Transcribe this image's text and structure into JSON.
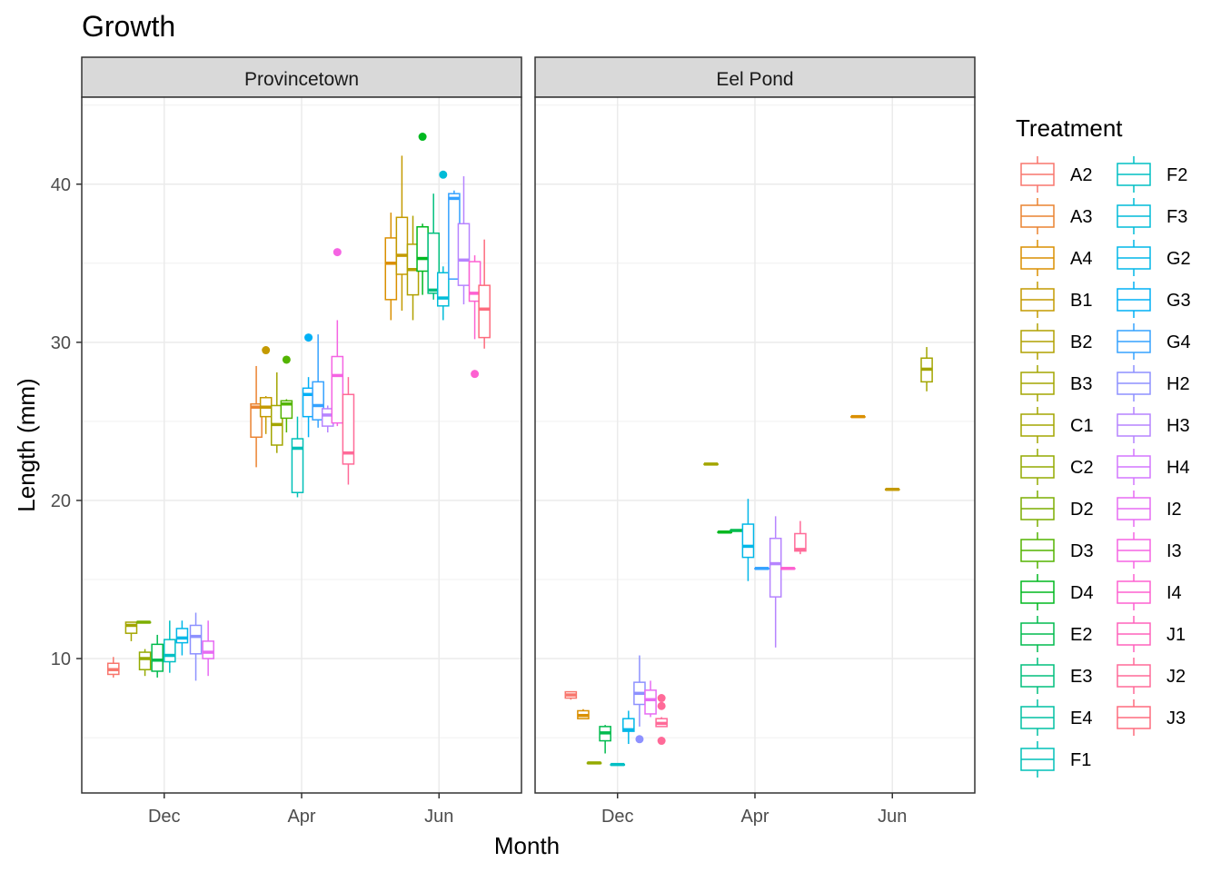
{
  "chart_data": {
    "type": "boxplot",
    "title": "Growth",
    "xlabel": "Month",
    "ylabel": "Length (mm)",
    "ylim": [
      1.5,
      45.5
    ],
    "yticks": [
      10,
      20,
      30,
      40
    ],
    "grid": true,
    "months": [
      "Dec",
      "Apr",
      "Jun"
    ],
    "legend": {
      "title": "Treatment",
      "placement": "right",
      "entries": [
        {
          "label": "A2",
          "color": "#F8766D"
        },
        {
          "label": "A3",
          "color": "#EA8331"
        },
        {
          "label": "A4",
          "color": "#DA8F00"
        },
        {
          "label": "B1",
          "color": "#C49A00"
        },
        {
          "label": "B2",
          "color": "#B1A100"
        },
        {
          "label": "B3",
          "color": "#A3A500"
        },
        {
          "label": "C1",
          "color": "#A3A500"
        },
        {
          "label": "C2",
          "color": "#94AA00"
        },
        {
          "label": "D2",
          "color": "#7CAE00"
        },
        {
          "label": "D3",
          "color": "#53B400"
        },
        {
          "label": "D4",
          "color": "#00B81F"
        },
        {
          "label": "E2",
          "color": "#00BB4E"
        },
        {
          "label": "E3",
          "color": "#00BF7D"
        },
        {
          "label": "E4",
          "color": "#00C0A3"
        },
        {
          "label": "F1",
          "color": "#00C0B8"
        },
        {
          "label": "F2",
          "color": "#00BFC4"
        },
        {
          "label": "F3",
          "color": "#00BCD8"
        },
        {
          "label": "G2",
          "color": "#00B7E8"
        },
        {
          "label": "G3",
          "color": "#00B0F6"
        },
        {
          "label": "G4",
          "color": "#35A2FF"
        },
        {
          "label": "H2",
          "color": "#8D91FF"
        },
        {
          "label": "H3",
          "color": "#B684FF"
        },
        {
          "label": "H4",
          "color": "#D376FF"
        },
        {
          "label": "I2",
          "color": "#E76BF3"
        },
        {
          "label": "I3",
          "color": "#F564E3"
        },
        {
          "label": "I4",
          "color": "#FD61D1"
        },
        {
          "label": "J1",
          "color": "#FF62BC"
        },
        {
          "label": "J2",
          "color": "#FF6A98"
        },
        {
          "label": "J3",
          "color": "#FD6C7E"
        }
      ]
    },
    "panels": [
      {
        "name": "Provincetown",
        "boxes": [
          {
            "month": "Dec",
            "treatment": "A2",
            "x": -0.37,
            "lo": 8.8,
            "q1": 9.0,
            "med": 9.3,
            "q3": 9.7,
            "hi": 10.1,
            "outliers": []
          },
          {
            "month": "Dec",
            "treatment": "B3",
            "x": -0.24,
            "lo": 11.1,
            "q1": 11.6,
            "med": 12.1,
            "q3": 12.3,
            "hi": 12.3,
            "outliers": []
          },
          {
            "month": "Dec",
            "treatment": "D2",
            "x": -0.15,
            "lo": 12.3,
            "q1": 12.3,
            "med": 12.3,
            "q3": 12.3,
            "hi": 12.3,
            "outliers": []
          },
          {
            "month": "Dec",
            "treatment": "C2",
            "x": -0.14,
            "lo": 8.9,
            "q1": 9.3,
            "med": 10.0,
            "q3": 10.4,
            "hi": 10.6,
            "outliers": []
          },
          {
            "month": "Dec",
            "treatment": "E2",
            "x": -0.05,
            "lo": 8.8,
            "q1": 9.2,
            "med": 9.9,
            "q3": 10.9,
            "hi": 11.5,
            "outliers": []
          },
          {
            "month": "Dec",
            "treatment": "F2",
            "x": 0.04,
            "lo": 9.1,
            "q1": 9.8,
            "med": 10.2,
            "q3": 11.2,
            "hi": 12.4,
            "outliers": []
          },
          {
            "month": "Dec",
            "treatment": "G2",
            "x": 0.13,
            "lo": 10.2,
            "q1": 11.0,
            "med": 11.3,
            "q3": 11.9,
            "hi": 12.4,
            "outliers": []
          },
          {
            "month": "Dec",
            "treatment": "H2",
            "x": 0.23,
            "lo": 8.6,
            "q1": 10.3,
            "med": 11.4,
            "q3": 12.1,
            "hi": 12.9,
            "outliers": []
          },
          {
            "month": "Dec",
            "treatment": "I2",
            "x": 0.32,
            "lo": 8.9,
            "q1": 10.0,
            "med": 10.4,
            "q3": 11.1,
            "hi": 12.4,
            "outliers": []
          },
          {
            "month": "Apr",
            "treatment": "A3",
            "x": -0.33,
            "lo": 22.1,
            "q1": 24.0,
            "med": 25.9,
            "q3": 26.1,
            "hi": 28.5,
            "outliers": []
          },
          {
            "month": "Apr",
            "treatment": "B1",
            "x": -0.26,
            "lo": 24.2,
            "q1": 25.3,
            "med": 25.9,
            "q3": 26.5,
            "hi": 26.6,
            "outliers": [
              29.5
            ]
          },
          {
            "month": "Apr",
            "treatment": "C1",
            "x": -0.18,
            "lo": 23.0,
            "q1": 23.5,
            "med": 24.8,
            "q3": 26.0,
            "hi": 28.1,
            "outliers": []
          },
          {
            "month": "Apr",
            "treatment": "D3",
            "x": -0.11,
            "lo": 24.3,
            "q1": 25.2,
            "med": 26.1,
            "q3": 26.3,
            "hi": 26.4,
            "outliers": [
              28.9
            ]
          },
          {
            "month": "Apr",
            "treatment": "F1",
            "x": -0.03,
            "lo": 20.2,
            "q1": 20.5,
            "med": 23.3,
            "q3": 23.9,
            "hi": 25.3,
            "outliers": []
          },
          {
            "month": "Apr",
            "treatment": "G3",
            "x": 0.05,
            "lo": 24.0,
            "q1": 25.3,
            "med": 26.7,
            "q3": 27.1,
            "hi": 27.8,
            "outliers": [
              30.3
            ]
          },
          {
            "month": "Apr",
            "treatment": "G4",
            "x": 0.12,
            "lo": 24.6,
            "q1": 25.1,
            "med": 26.0,
            "q3": 27.5,
            "hi": 30.5,
            "outliers": []
          },
          {
            "month": "Apr",
            "treatment": "H3",
            "x": 0.19,
            "lo": 24.3,
            "q1": 24.7,
            "med": 25.4,
            "q3": 25.8,
            "hi": 26.0,
            "outliers": []
          },
          {
            "month": "Apr",
            "treatment": "I3",
            "x": 0.26,
            "lo": 24.7,
            "q1": 24.9,
            "med": 27.9,
            "q3": 29.1,
            "hi": 31.4,
            "outliers": [
              35.7
            ]
          },
          {
            "month": "Apr",
            "treatment": "J2",
            "x": 0.34,
            "lo": 21.0,
            "q1": 22.3,
            "med": 23.0,
            "q3": 26.7,
            "hi": 27.8,
            "outliers": []
          },
          {
            "month": "Jun",
            "treatment": "A4",
            "x": -0.35,
            "lo": 31.4,
            "q1": 32.7,
            "med": 35.0,
            "q3": 36.6,
            "hi": 38.2,
            "outliers": []
          },
          {
            "month": "Jun",
            "treatment": "B1",
            "x": -0.27,
            "lo": 32.0,
            "q1": 34.3,
            "med": 35.5,
            "q3": 37.9,
            "hi": 41.8,
            "outliers": []
          },
          {
            "month": "Jun",
            "treatment": "B2",
            "x": -0.19,
            "lo": 31.4,
            "q1": 33.0,
            "med": 34.6,
            "q3": 36.2,
            "hi": 38.0,
            "outliers": []
          },
          {
            "month": "Jun",
            "treatment": "D4",
            "x": -0.12,
            "lo": 33.0,
            "q1": 34.5,
            "med": 35.3,
            "q3": 37.3,
            "hi": 37.5,
            "outliers": [
              43.0
            ]
          },
          {
            "month": "Jun",
            "treatment": "E3",
            "x": -0.04,
            "lo": 32.7,
            "q1": 33.1,
            "med": 33.3,
            "q3": 36.9,
            "hi": 39.4,
            "outliers": []
          },
          {
            "month": "Jun",
            "treatment": "F3",
            "x": 0.03,
            "lo": 31.4,
            "q1": 32.3,
            "med": 32.8,
            "q3": 34.4,
            "hi": 34.8,
            "outliers": [
              40.6
            ]
          },
          {
            "month": "Jun",
            "treatment": "G4",
            "x": 0.11,
            "lo": 34.0,
            "q1": 34.0,
            "med": 39.1,
            "q3": 39.4,
            "hi": 39.6,
            "outliers": []
          },
          {
            "month": "Jun",
            "treatment": "H3",
            "x": 0.18,
            "lo": 32.4,
            "q1": 33.6,
            "med": 35.2,
            "q3": 37.5,
            "hi": 40.5,
            "outliers": []
          },
          {
            "month": "Jun",
            "treatment": "I4",
            "x": 0.26,
            "lo": 30.2,
            "q1": 32.6,
            "med": 33.1,
            "q3": 35.1,
            "hi": 35.5,
            "outliers": [
              28.0
            ]
          },
          {
            "month": "Jun",
            "treatment": "J3",
            "x": 0.33,
            "lo": 29.6,
            "q1": 30.3,
            "med": 32.1,
            "q3": 33.6,
            "hi": 36.5,
            "outliers": []
          }
        ]
      },
      {
        "name": "Eel Pond",
        "boxes": [
          {
            "month": "Dec",
            "treatment": "A2",
            "x": -0.34,
            "lo": 7.4,
            "q1": 7.5,
            "med": 7.7,
            "q3": 7.9,
            "hi": 7.9,
            "outliers": []
          },
          {
            "month": "Dec",
            "treatment": "A4",
            "x": -0.25,
            "lo": 6.2,
            "q1": 6.2,
            "med": 6.4,
            "q3": 6.7,
            "hi": 6.8,
            "outliers": []
          },
          {
            "month": "Dec",
            "treatment": "C2",
            "x": -0.17,
            "lo": 3.4,
            "q1": 3.4,
            "med": 3.4,
            "q3": 3.4,
            "hi": 3.4,
            "outliers": []
          },
          {
            "month": "Dec",
            "treatment": "E2",
            "x": -0.09,
            "lo": 4.0,
            "q1": 4.8,
            "med": 5.3,
            "q3": 5.7,
            "hi": 5.8,
            "outliers": []
          },
          {
            "month": "Dec",
            "treatment": "F2",
            "x": 0.0,
            "lo": 3.3,
            "q1": 3.3,
            "med": 3.3,
            "q3": 3.3,
            "hi": 3.3,
            "outliers": []
          },
          {
            "month": "Dec",
            "treatment": "G2",
            "x": 0.08,
            "lo": 4.6,
            "q1": 5.4,
            "med": 5.5,
            "q3": 6.2,
            "hi": 6.7,
            "outliers": []
          },
          {
            "month": "Dec",
            "treatment": "H2",
            "x": 0.16,
            "lo": 5.7,
            "q1": 7.1,
            "med": 7.8,
            "q3": 8.5,
            "hi": 10.2,
            "outliers": [
              4.9
            ]
          },
          {
            "month": "Dec",
            "treatment": "I2",
            "x": 0.24,
            "lo": 6.3,
            "q1": 6.5,
            "med": 7.4,
            "q3": 8.0,
            "hi": 8.6,
            "outliers": []
          },
          {
            "month": "Dec",
            "treatment": "J2",
            "x": 0.32,
            "lo": 5.7,
            "q1": 5.7,
            "med": 5.9,
            "q3": 6.2,
            "hi": 6.3,
            "outliers": [
              7.5,
              7.0,
              4.8
            ]
          },
          {
            "month": "Apr",
            "treatment": "C1",
            "x": -0.32,
            "lo": 22.3,
            "q1": 22.3,
            "med": 22.3,
            "q3": 22.3,
            "hi": 22.3,
            "outliers": []
          },
          {
            "month": "Apr",
            "treatment": "D4",
            "x": -0.22,
            "lo": 18.0,
            "q1": 18.0,
            "med": 18.0,
            "q3": 18.0,
            "hi": 18.0,
            "outliers": []
          },
          {
            "month": "Apr",
            "treatment": "E2",
            "x": -0.13,
            "lo": 18.1,
            "q1": 18.1,
            "med": 18.1,
            "q3": 18.1,
            "hi": 18.1,
            "outliers": []
          },
          {
            "month": "Apr",
            "treatment": "G2",
            "x": -0.05,
            "lo": 14.9,
            "q1": 16.4,
            "med": 17.1,
            "q3": 18.5,
            "hi": 20.1,
            "outliers": []
          },
          {
            "month": "Apr",
            "treatment": "G4",
            "x": 0.05,
            "lo": 15.7,
            "q1": 15.7,
            "med": 15.7,
            "q3": 15.7,
            "hi": 15.7,
            "outliers": []
          },
          {
            "month": "Apr",
            "treatment": "H3",
            "x": 0.15,
            "lo": 10.7,
            "q1": 13.9,
            "med": 16.0,
            "q3": 17.6,
            "hi": 19.0,
            "outliers": []
          },
          {
            "month": "Apr",
            "treatment": "I4",
            "x": 0.24,
            "lo": 15.7,
            "q1": 15.7,
            "med": 15.7,
            "q3": 15.7,
            "hi": 15.7,
            "outliers": []
          },
          {
            "month": "Apr",
            "treatment": "J2",
            "x": 0.33,
            "lo": 16.6,
            "q1": 16.8,
            "med": 16.9,
            "q3": 17.9,
            "hi": 18.7,
            "outliers": []
          },
          {
            "month": "Jun",
            "treatment": "A4",
            "x": -0.25,
            "lo": 25.3,
            "q1": 25.3,
            "med": 25.3,
            "q3": 25.3,
            "hi": 25.3,
            "outliers": []
          },
          {
            "month": "Jun",
            "treatment": "B1",
            "x": 0.0,
            "lo": 20.7,
            "q1": 20.7,
            "med": 20.7,
            "q3": 20.7,
            "hi": 20.7,
            "outliers": []
          },
          {
            "month": "Jun",
            "treatment": "C1",
            "x": 0.25,
            "lo": 26.9,
            "q1": 27.5,
            "med": 28.3,
            "q3": 29.0,
            "hi": 29.7,
            "outliers": []
          }
        ]
      }
    ]
  }
}
